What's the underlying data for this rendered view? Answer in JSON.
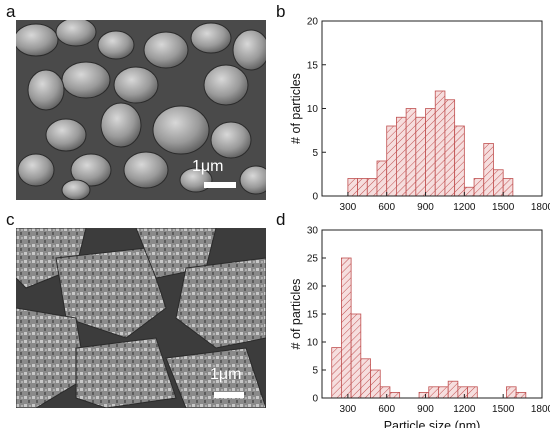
{
  "panels": {
    "a": {
      "letter": "a",
      "scalebar": "1μm"
    },
    "b": {
      "letter": "b"
    },
    "c": {
      "letter": "c",
      "scalebar": "1μm"
    },
    "d": {
      "letter": "d"
    }
  },
  "chart_data": [
    {
      "type": "bar",
      "xlabel": "Particle size (nm)",
      "ylabel": "# of particles",
      "xlim": [
        100,
        1800
      ],
      "ylim": [
        0,
        20
      ],
      "xticks": [
        300,
        600,
        900,
        1200,
        1500,
        1800
      ],
      "yticks": [
        0,
        5,
        10,
        15,
        20
      ],
      "bin_width": 75,
      "x": [
        337.5,
        412.5,
        487.5,
        562.5,
        637.5,
        712.5,
        787.5,
        862.5,
        937.5,
        1012.5,
        1087.5,
        1162.5,
        1237.5,
        1312.5,
        1387.5,
        1462.5,
        1537.5
      ],
      "values": [
        2,
        2,
        2,
        4,
        8,
        9,
        10,
        9,
        10,
        12,
        11,
        8,
        1,
        2,
        6,
        3,
        2
      ],
      "bar_fill": "#f6dede",
      "bar_stroke": "#c05050",
      "grid": false
    },
    {
      "type": "bar",
      "xlabel": "Particle size (nm)",
      "ylabel": "# of particles",
      "xlim": [
        100,
        1800
      ],
      "ylim": [
        0,
        30
      ],
      "xticks": [
        300,
        600,
        900,
        1200,
        1500,
        1800
      ],
      "yticks": [
        0,
        5,
        10,
        15,
        20,
        25,
        30
      ],
      "bin_width": 75,
      "x": [
        212.5,
        287.5,
        362.5,
        437.5,
        512.5,
        587.5,
        662.5,
        737.5,
        812.5,
        887.5,
        962.5,
        1037.5,
        1112.5,
        1187.5,
        1262.5,
        1337.5,
        1412.5,
        1487.5,
        1562.5,
        1637.5
      ],
      "values": [
        9,
        25,
        15,
        7,
        5,
        2,
        1,
        0,
        0,
        1,
        2,
        2,
        3,
        2,
        2,
        0,
        0,
        0,
        2,
        1
      ],
      "bar_fill": "#f6dede",
      "bar_stroke": "#c05050",
      "grid": false
    }
  ]
}
